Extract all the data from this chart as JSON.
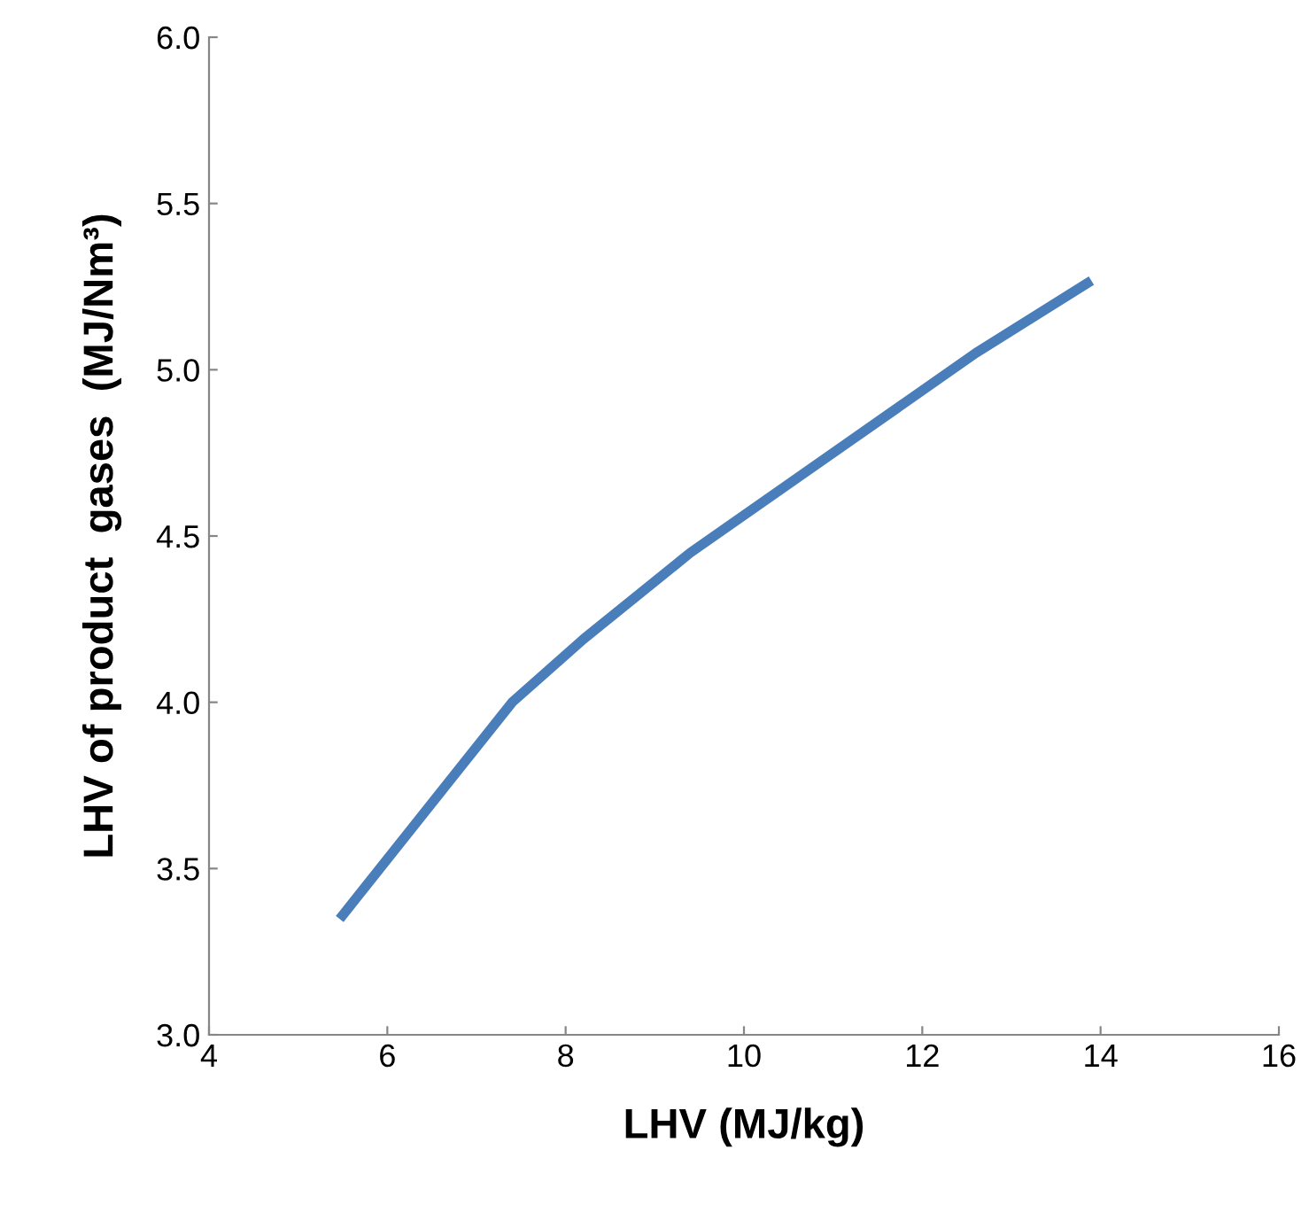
{
  "chart_data": {
    "type": "line",
    "xlabel": "LHV (MJ/kg)",
    "ylabel": "LHV of product  gases  (MJ/Nm³)",
    "x": [
      5.5,
      7.4,
      8.2,
      9.4,
      12.6,
      13.85
    ],
    "series": [
      {
        "color": "#4a7ebb",
        "values": [
          3.36,
          4.0,
          4.19,
          4.45,
          5.05,
          5.26
        ]
      }
    ],
    "xlim": [
      4,
      16
    ],
    "xticks": [
      4,
      6,
      8,
      10,
      12,
      14,
      16
    ],
    "ylim": [
      3.0,
      6.0
    ],
    "yticks": [
      {
        "value": 3.0,
        "label": "3.0"
      },
      {
        "value": 3.5,
        "label": "3.5"
      },
      {
        "value": 4.0,
        "label": "4.0"
      },
      {
        "value": 4.5,
        "label": "4.5"
      },
      {
        "value": 5.0,
        "label": "5.0"
      },
      {
        "value": 5.5,
        "label": "5.5"
      },
      {
        "value": 6.0,
        "label": "6.0"
      }
    ],
    "grid": false,
    "marker": "none",
    "line_style": "solid"
  }
}
